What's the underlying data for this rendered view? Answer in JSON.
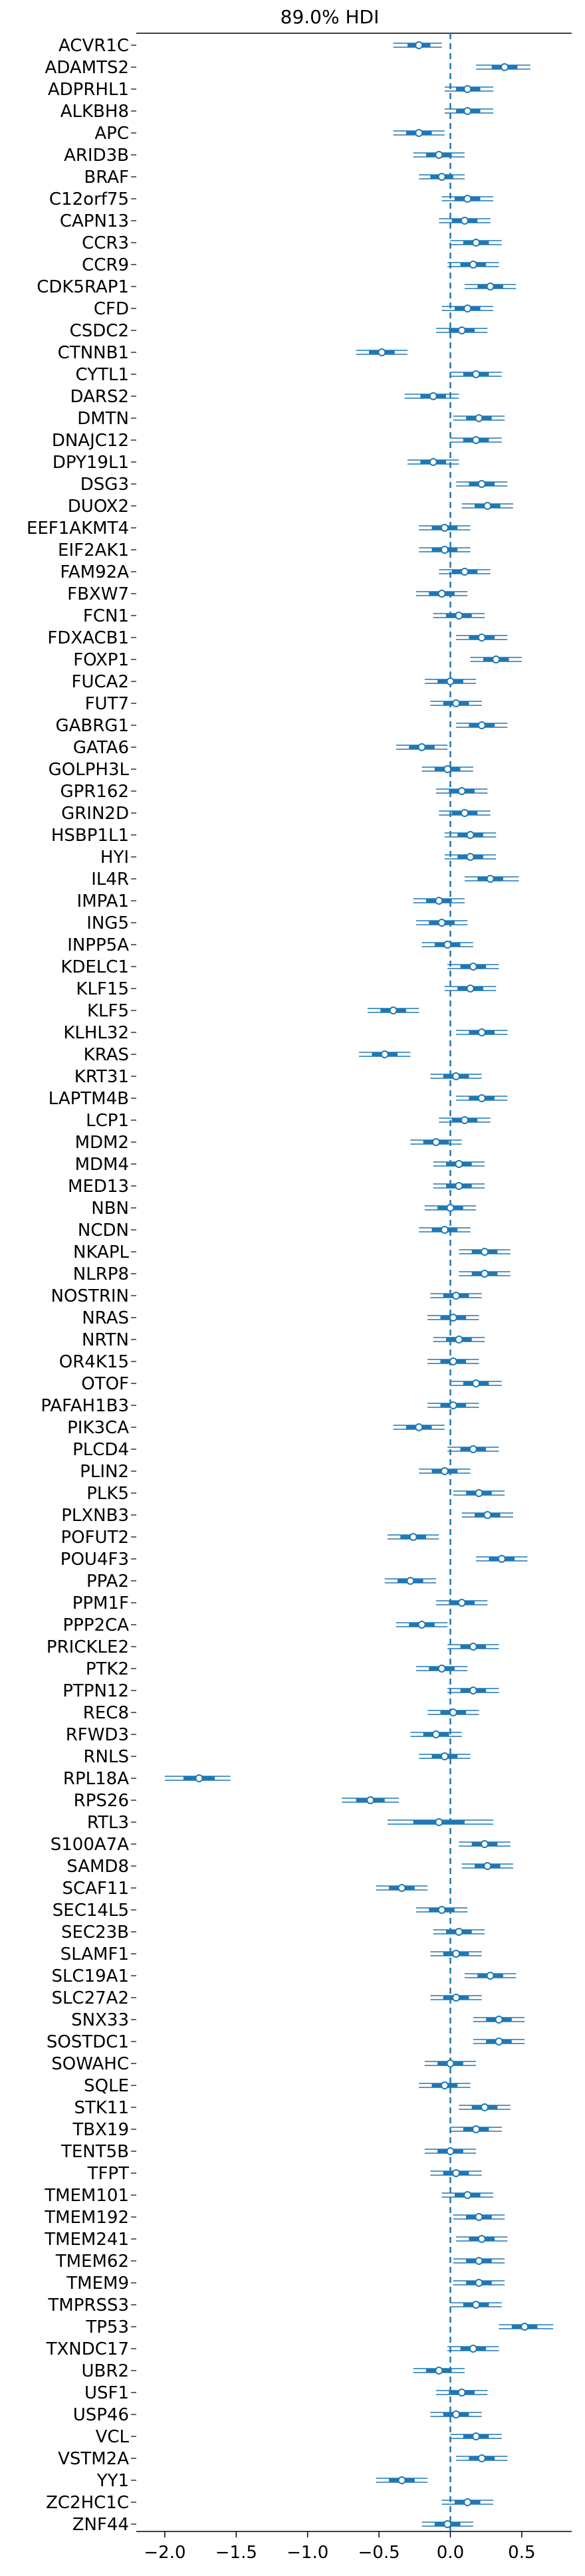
{
  "chart_data": {
    "type": "forest",
    "title": "89.0% HDI",
    "xlabel": "",
    "ylabel": "",
    "xlim": [
      -2.2,
      0.85
    ],
    "xticks": [
      -2.0,
      -1.5,
      -1.0,
      -0.5,
      0.0,
      0.5
    ],
    "xtick_labels": [
      "−2.0",
      "−1.5",
      "−1.0",
      "−0.5",
      "0.0",
      "0.5"
    ],
    "reference_line": 0.0,
    "grid": false,
    "colors": {
      "mark": "#1f77b4",
      "point_fill": "#ffffff",
      "reference": "#1f77b4"
    },
    "rows": [
      {
        "label": "ACVR1C",
        "mean": -0.22,
        "hdi_low": -0.4,
        "hdi_high": -0.06,
        "iqr_low": -0.3,
        "iqr_high": -0.14
      },
      {
        "label": "ADAMTS2",
        "mean": 0.38,
        "hdi_low": 0.18,
        "hdi_high": 0.56,
        "iqr_low": 0.29,
        "iqr_high": 0.47
      },
      {
        "label": "ADPRHL1",
        "mean": 0.12,
        "hdi_low": -0.04,
        "hdi_high": 0.3,
        "iqr_low": 0.04,
        "iqr_high": 0.21
      },
      {
        "label": "ALKBH8",
        "mean": 0.12,
        "hdi_low": -0.04,
        "hdi_high": 0.3,
        "iqr_low": 0.04,
        "iqr_high": 0.21
      },
      {
        "label": "APC",
        "mean": -0.22,
        "hdi_low": -0.4,
        "hdi_high": -0.04,
        "iqr_low": -0.31,
        "iqr_high": -0.13
      },
      {
        "label": "ARID3B",
        "mean": -0.08,
        "hdi_low": -0.26,
        "hdi_high": 0.1,
        "iqr_low": -0.17,
        "iqr_high": 0.01
      },
      {
        "label": "BRAF",
        "mean": -0.06,
        "hdi_low": -0.22,
        "hdi_high": 0.1,
        "iqr_low": -0.14,
        "iqr_high": 0.02
      },
      {
        "label": "C12orf75",
        "mean": 0.12,
        "hdi_low": -0.06,
        "hdi_high": 0.3,
        "iqr_low": 0.03,
        "iqr_high": 0.21
      },
      {
        "label": "CAPN13",
        "mean": 0.1,
        "hdi_low": -0.08,
        "hdi_high": 0.28,
        "iqr_low": 0.01,
        "iqr_high": 0.19
      },
      {
        "label": "CCR3",
        "mean": 0.18,
        "hdi_low": 0.0,
        "hdi_high": 0.36,
        "iqr_low": 0.09,
        "iqr_high": 0.27
      },
      {
        "label": "CCR9",
        "mean": 0.16,
        "hdi_low": -0.02,
        "hdi_high": 0.34,
        "iqr_low": 0.07,
        "iqr_high": 0.25
      },
      {
        "label": "CDK5RAP1",
        "mean": 0.28,
        "hdi_low": 0.1,
        "hdi_high": 0.46,
        "iqr_low": 0.19,
        "iqr_high": 0.37
      },
      {
        "label": "CFD",
        "mean": 0.12,
        "hdi_low": -0.06,
        "hdi_high": 0.3,
        "iqr_low": 0.03,
        "iqr_high": 0.21
      },
      {
        "label": "CSDC2",
        "mean": 0.08,
        "hdi_low": -0.1,
        "hdi_high": 0.26,
        "iqr_low": -0.01,
        "iqr_high": 0.17
      },
      {
        "label": "CTNNB1",
        "mean": -0.48,
        "hdi_low": -0.66,
        "hdi_high": -0.3,
        "iqr_low": -0.57,
        "iqr_high": -0.39
      },
      {
        "label": "CYTL1",
        "mean": 0.18,
        "hdi_low": 0.0,
        "hdi_high": 0.36,
        "iqr_low": 0.09,
        "iqr_high": 0.27
      },
      {
        "label": "DARS2",
        "mean": -0.12,
        "hdi_low": -0.32,
        "hdi_high": 0.06,
        "iqr_low": -0.21,
        "iqr_high": -0.03
      },
      {
        "label": "DMTN",
        "mean": 0.2,
        "hdi_low": 0.02,
        "hdi_high": 0.38,
        "iqr_low": 0.11,
        "iqr_high": 0.29
      },
      {
        "label": "DNAJC12",
        "mean": 0.18,
        "hdi_low": 0.0,
        "hdi_high": 0.36,
        "iqr_low": 0.09,
        "iqr_high": 0.27
      },
      {
        "label": "DPY19L1",
        "mean": -0.12,
        "hdi_low": -0.3,
        "hdi_high": 0.06,
        "iqr_low": -0.21,
        "iqr_high": -0.03
      },
      {
        "label": "DSG3",
        "mean": 0.22,
        "hdi_low": 0.04,
        "hdi_high": 0.4,
        "iqr_low": 0.13,
        "iqr_high": 0.31
      },
      {
        "label": "DUOX2",
        "mean": 0.26,
        "hdi_low": 0.08,
        "hdi_high": 0.44,
        "iqr_low": 0.17,
        "iqr_high": 0.35
      },
      {
        "label": "EEF1AKMT4",
        "mean": -0.04,
        "hdi_low": -0.22,
        "hdi_high": 0.14,
        "iqr_low": -0.13,
        "iqr_high": 0.05
      },
      {
        "label": "EIF2AK1",
        "mean": -0.04,
        "hdi_low": -0.22,
        "hdi_high": 0.14,
        "iqr_low": -0.13,
        "iqr_high": 0.05
      },
      {
        "label": "FAM92A",
        "mean": 0.1,
        "hdi_low": -0.08,
        "hdi_high": 0.28,
        "iqr_low": 0.01,
        "iqr_high": 0.19
      },
      {
        "label": "FBXW7",
        "mean": -0.06,
        "hdi_low": -0.24,
        "hdi_high": 0.12,
        "iqr_low": -0.15,
        "iqr_high": 0.03
      },
      {
        "label": "FCN1",
        "mean": 0.06,
        "hdi_low": -0.12,
        "hdi_high": 0.24,
        "iqr_low": -0.03,
        "iqr_high": 0.15
      },
      {
        "label": "FDXACB1",
        "mean": 0.22,
        "hdi_low": 0.04,
        "hdi_high": 0.4,
        "iqr_low": 0.13,
        "iqr_high": 0.31
      },
      {
        "label": "FOXP1",
        "mean": 0.32,
        "hdi_low": 0.14,
        "hdi_high": 0.5,
        "iqr_low": 0.23,
        "iqr_high": 0.41
      },
      {
        "label": "FUCA2",
        "mean": 0.0,
        "hdi_low": -0.18,
        "hdi_high": 0.18,
        "iqr_low": -0.09,
        "iqr_high": 0.09
      },
      {
        "label": "FUT7",
        "mean": 0.04,
        "hdi_low": -0.14,
        "hdi_high": 0.22,
        "iqr_low": -0.05,
        "iqr_high": 0.13
      },
      {
        "label": "GABRG1",
        "mean": 0.22,
        "hdi_low": 0.04,
        "hdi_high": 0.4,
        "iqr_low": 0.13,
        "iqr_high": 0.31
      },
      {
        "label": "GATA6",
        "mean": -0.2,
        "hdi_low": -0.38,
        "hdi_high": -0.02,
        "iqr_low": -0.29,
        "iqr_high": -0.11
      },
      {
        "label": "GOLPH3L",
        "mean": -0.02,
        "hdi_low": -0.2,
        "hdi_high": 0.16,
        "iqr_low": -0.11,
        "iqr_high": 0.07
      },
      {
        "label": "GPR162",
        "mean": 0.08,
        "hdi_low": -0.1,
        "hdi_high": 0.26,
        "iqr_low": -0.01,
        "iqr_high": 0.17
      },
      {
        "label": "GRIN2D",
        "mean": 0.1,
        "hdi_low": -0.08,
        "hdi_high": 0.28,
        "iqr_low": 0.01,
        "iqr_high": 0.19
      },
      {
        "label": "HSBP1L1",
        "mean": 0.14,
        "hdi_low": -0.04,
        "hdi_high": 0.32,
        "iqr_low": 0.05,
        "iqr_high": 0.23
      },
      {
        "label": "HYI",
        "mean": 0.14,
        "hdi_low": -0.04,
        "hdi_high": 0.32,
        "iqr_low": 0.05,
        "iqr_high": 0.23
      },
      {
        "label": "IL4R",
        "mean": 0.28,
        "hdi_low": 0.1,
        "hdi_high": 0.48,
        "iqr_low": 0.19,
        "iqr_high": 0.37
      },
      {
        "label": "IMPA1",
        "mean": -0.08,
        "hdi_low": -0.26,
        "hdi_high": 0.1,
        "iqr_low": -0.17,
        "iqr_high": 0.01
      },
      {
        "label": "ING5",
        "mean": -0.06,
        "hdi_low": -0.24,
        "hdi_high": 0.12,
        "iqr_low": -0.15,
        "iqr_high": 0.03
      },
      {
        "label": "INPP5A",
        "mean": -0.02,
        "hdi_low": -0.2,
        "hdi_high": 0.16,
        "iqr_low": -0.11,
        "iqr_high": 0.07
      },
      {
        "label": "KDELC1",
        "mean": 0.16,
        "hdi_low": -0.02,
        "hdi_high": 0.34,
        "iqr_low": 0.07,
        "iqr_high": 0.25
      },
      {
        "label": "KLF15",
        "mean": 0.14,
        "hdi_low": -0.04,
        "hdi_high": 0.32,
        "iqr_low": 0.05,
        "iqr_high": 0.23
      },
      {
        "label": "KLF5",
        "mean": -0.4,
        "hdi_low": -0.58,
        "hdi_high": -0.22,
        "iqr_low": -0.49,
        "iqr_high": -0.31
      },
      {
        "label": "KLHL32",
        "mean": 0.22,
        "hdi_low": 0.04,
        "hdi_high": 0.4,
        "iqr_low": 0.13,
        "iqr_high": 0.31
      },
      {
        "label": "KRAS",
        "mean": -0.46,
        "hdi_low": -0.64,
        "hdi_high": -0.28,
        "iqr_low": -0.55,
        "iqr_high": -0.37
      },
      {
        "label": "KRT31",
        "mean": 0.04,
        "hdi_low": -0.14,
        "hdi_high": 0.22,
        "iqr_low": -0.05,
        "iqr_high": 0.13
      },
      {
        "label": "LAPTM4B",
        "mean": 0.22,
        "hdi_low": 0.04,
        "hdi_high": 0.4,
        "iqr_low": 0.13,
        "iqr_high": 0.31
      },
      {
        "label": "LCP1",
        "mean": 0.1,
        "hdi_low": -0.08,
        "hdi_high": 0.28,
        "iqr_low": 0.01,
        "iqr_high": 0.19
      },
      {
        "label": "MDM2",
        "mean": -0.1,
        "hdi_low": -0.28,
        "hdi_high": 0.08,
        "iqr_low": -0.19,
        "iqr_high": -0.01
      },
      {
        "label": "MDM4",
        "mean": 0.06,
        "hdi_low": -0.12,
        "hdi_high": 0.24,
        "iqr_low": -0.03,
        "iqr_high": 0.15
      },
      {
        "label": "MED13",
        "mean": 0.06,
        "hdi_low": -0.12,
        "hdi_high": 0.24,
        "iqr_low": -0.03,
        "iqr_high": 0.15
      },
      {
        "label": "NBN",
        "mean": 0.0,
        "hdi_low": -0.18,
        "hdi_high": 0.18,
        "iqr_low": -0.09,
        "iqr_high": 0.09
      },
      {
        "label": "NCDN",
        "mean": -0.04,
        "hdi_low": -0.22,
        "hdi_high": 0.14,
        "iqr_low": -0.13,
        "iqr_high": 0.05
      },
      {
        "label": "NKAPL",
        "mean": 0.24,
        "hdi_low": 0.06,
        "hdi_high": 0.42,
        "iqr_low": 0.15,
        "iqr_high": 0.33
      },
      {
        "label": "NLRP8",
        "mean": 0.24,
        "hdi_low": 0.06,
        "hdi_high": 0.42,
        "iqr_low": 0.15,
        "iqr_high": 0.33
      },
      {
        "label": "NOSTRIN",
        "mean": 0.04,
        "hdi_low": -0.14,
        "hdi_high": 0.22,
        "iqr_low": -0.05,
        "iqr_high": 0.13
      },
      {
        "label": "NRAS",
        "mean": 0.02,
        "hdi_low": -0.16,
        "hdi_high": 0.2,
        "iqr_low": -0.07,
        "iqr_high": 0.11
      },
      {
        "label": "NRTN",
        "mean": 0.06,
        "hdi_low": -0.12,
        "hdi_high": 0.24,
        "iqr_low": -0.03,
        "iqr_high": 0.15
      },
      {
        "label": "OR4K15",
        "mean": 0.02,
        "hdi_low": -0.16,
        "hdi_high": 0.2,
        "iqr_low": -0.07,
        "iqr_high": 0.11
      },
      {
        "label": "OTOF",
        "mean": 0.18,
        "hdi_low": 0.0,
        "hdi_high": 0.36,
        "iqr_low": 0.09,
        "iqr_high": 0.27
      },
      {
        "label": "PAFAH1B3",
        "mean": 0.02,
        "hdi_low": -0.16,
        "hdi_high": 0.2,
        "iqr_low": -0.07,
        "iqr_high": 0.11
      },
      {
        "label": "PIK3CA",
        "mean": -0.22,
        "hdi_low": -0.4,
        "hdi_high": -0.04,
        "iqr_low": -0.31,
        "iqr_high": -0.13
      },
      {
        "label": "PLCD4",
        "mean": 0.16,
        "hdi_low": -0.02,
        "hdi_high": 0.34,
        "iqr_low": 0.07,
        "iqr_high": 0.25
      },
      {
        "label": "PLIN2",
        "mean": -0.04,
        "hdi_low": -0.22,
        "hdi_high": 0.14,
        "iqr_low": -0.13,
        "iqr_high": 0.05
      },
      {
        "label": "PLK5",
        "mean": 0.2,
        "hdi_low": 0.02,
        "hdi_high": 0.38,
        "iqr_low": 0.11,
        "iqr_high": 0.29
      },
      {
        "label": "PLXNB3",
        "mean": 0.26,
        "hdi_low": 0.08,
        "hdi_high": 0.44,
        "iqr_low": 0.17,
        "iqr_high": 0.35
      },
      {
        "label": "POFUT2",
        "mean": -0.26,
        "hdi_low": -0.44,
        "hdi_high": -0.08,
        "iqr_low": -0.35,
        "iqr_high": -0.17
      },
      {
        "label": "POU4F3",
        "mean": 0.36,
        "hdi_low": 0.18,
        "hdi_high": 0.54,
        "iqr_low": 0.27,
        "iqr_high": 0.45
      },
      {
        "label": "PPA2",
        "mean": -0.28,
        "hdi_low": -0.46,
        "hdi_high": -0.1,
        "iqr_low": -0.37,
        "iqr_high": -0.19
      },
      {
        "label": "PPM1F",
        "mean": 0.08,
        "hdi_low": -0.1,
        "hdi_high": 0.26,
        "iqr_low": -0.01,
        "iqr_high": 0.17
      },
      {
        "label": "PPP2CA",
        "mean": -0.2,
        "hdi_low": -0.38,
        "hdi_high": -0.02,
        "iqr_low": -0.29,
        "iqr_high": -0.11
      },
      {
        "label": "PRICKLE2",
        "mean": 0.16,
        "hdi_low": -0.02,
        "hdi_high": 0.34,
        "iqr_low": 0.07,
        "iqr_high": 0.25
      },
      {
        "label": "PTK2",
        "mean": -0.06,
        "hdi_low": -0.24,
        "hdi_high": 0.12,
        "iqr_low": -0.15,
        "iqr_high": 0.03
      },
      {
        "label": "PTPN12",
        "mean": 0.16,
        "hdi_low": -0.02,
        "hdi_high": 0.34,
        "iqr_low": 0.07,
        "iqr_high": 0.25
      },
      {
        "label": "REC8",
        "mean": 0.02,
        "hdi_low": -0.16,
        "hdi_high": 0.2,
        "iqr_low": -0.07,
        "iqr_high": 0.11
      },
      {
        "label": "RFWD3",
        "mean": -0.1,
        "hdi_low": -0.28,
        "hdi_high": 0.08,
        "iqr_low": -0.19,
        "iqr_high": -0.01
      },
      {
        "label": "RNLS",
        "mean": -0.04,
        "hdi_low": -0.22,
        "hdi_high": 0.14,
        "iqr_low": -0.13,
        "iqr_high": 0.05
      },
      {
        "label": "RPL18A",
        "mean": -1.76,
        "hdi_low": -2.0,
        "hdi_high": -1.54,
        "iqr_low": -1.87,
        "iqr_high": -1.65
      },
      {
        "label": "RPS26",
        "mean": -0.56,
        "hdi_low": -0.76,
        "hdi_high": -0.36,
        "iqr_low": -0.66,
        "iqr_high": -0.46
      },
      {
        "label": "RTL3",
        "mean": -0.08,
        "hdi_low": -0.44,
        "hdi_high": 0.3,
        "iqr_low": -0.26,
        "iqr_high": 0.1
      },
      {
        "label": "S100A7A",
        "mean": 0.24,
        "hdi_low": 0.06,
        "hdi_high": 0.42,
        "iqr_low": 0.15,
        "iqr_high": 0.33
      },
      {
        "label": "SAMD8",
        "mean": 0.26,
        "hdi_low": 0.08,
        "hdi_high": 0.44,
        "iqr_low": 0.17,
        "iqr_high": 0.35
      },
      {
        "label": "SCAF11",
        "mean": -0.34,
        "hdi_low": -0.52,
        "hdi_high": -0.16,
        "iqr_low": -0.43,
        "iqr_high": -0.25
      },
      {
        "label": "SEC14L5",
        "mean": -0.06,
        "hdi_low": -0.24,
        "hdi_high": 0.12,
        "iqr_low": -0.15,
        "iqr_high": 0.03
      },
      {
        "label": "SEC23B",
        "mean": 0.06,
        "hdi_low": -0.12,
        "hdi_high": 0.24,
        "iqr_low": -0.03,
        "iqr_high": 0.15
      },
      {
        "label": "SLAMF1",
        "mean": 0.04,
        "hdi_low": -0.14,
        "hdi_high": 0.22,
        "iqr_low": -0.05,
        "iqr_high": 0.13
      },
      {
        "label": "SLC19A1",
        "mean": 0.28,
        "hdi_low": 0.1,
        "hdi_high": 0.46,
        "iqr_low": 0.19,
        "iqr_high": 0.37
      },
      {
        "label": "SLC27A2",
        "mean": 0.04,
        "hdi_low": -0.14,
        "hdi_high": 0.22,
        "iqr_low": -0.05,
        "iqr_high": 0.13
      },
      {
        "label": "SNX33",
        "mean": 0.34,
        "hdi_low": 0.16,
        "hdi_high": 0.52,
        "iqr_low": 0.25,
        "iqr_high": 0.43
      },
      {
        "label": "SOSTDC1",
        "mean": 0.34,
        "hdi_low": 0.16,
        "hdi_high": 0.52,
        "iqr_low": 0.25,
        "iqr_high": 0.43
      },
      {
        "label": "SOWAHC",
        "mean": 0.0,
        "hdi_low": -0.18,
        "hdi_high": 0.18,
        "iqr_low": -0.09,
        "iqr_high": 0.09
      },
      {
        "label": "SQLE",
        "mean": -0.04,
        "hdi_low": -0.22,
        "hdi_high": 0.14,
        "iqr_low": -0.13,
        "iqr_high": 0.05
      },
      {
        "label": "STK11",
        "mean": 0.24,
        "hdi_low": 0.06,
        "hdi_high": 0.42,
        "iqr_low": 0.15,
        "iqr_high": 0.33
      },
      {
        "label": "TBX19",
        "mean": 0.18,
        "hdi_low": 0.0,
        "hdi_high": 0.36,
        "iqr_low": 0.09,
        "iqr_high": 0.27
      },
      {
        "label": "TENT5B",
        "mean": 0.0,
        "hdi_low": -0.18,
        "hdi_high": 0.18,
        "iqr_low": -0.09,
        "iqr_high": 0.09
      },
      {
        "label": "TFPT",
        "mean": 0.04,
        "hdi_low": -0.14,
        "hdi_high": 0.22,
        "iqr_low": -0.05,
        "iqr_high": 0.13
      },
      {
        "label": "TMEM101",
        "mean": 0.12,
        "hdi_low": -0.06,
        "hdi_high": 0.3,
        "iqr_low": 0.03,
        "iqr_high": 0.21
      },
      {
        "label": "TMEM192",
        "mean": 0.2,
        "hdi_low": 0.02,
        "hdi_high": 0.38,
        "iqr_low": 0.11,
        "iqr_high": 0.29
      },
      {
        "label": "TMEM241",
        "mean": 0.22,
        "hdi_low": 0.04,
        "hdi_high": 0.4,
        "iqr_low": 0.13,
        "iqr_high": 0.31
      },
      {
        "label": "TMEM62",
        "mean": 0.2,
        "hdi_low": 0.02,
        "hdi_high": 0.38,
        "iqr_low": 0.11,
        "iqr_high": 0.29
      },
      {
        "label": "TMEM9",
        "mean": 0.2,
        "hdi_low": 0.02,
        "hdi_high": 0.38,
        "iqr_low": 0.11,
        "iqr_high": 0.29
      },
      {
        "label": "TMPRSS3",
        "mean": 0.18,
        "hdi_low": 0.0,
        "hdi_high": 0.36,
        "iqr_low": 0.09,
        "iqr_high": 0.27
      },
      {
        "label": "TP53",
        "mean": 0.52,
        "hdi_low": 0.34,
        "hdi_high": 0.72,
        "iqr_low": 0.43,
        "iqr_high": 0.61
      },
      {
        "label": "TXNDC17",
        "mean": 0.16,
        "hdi_low": -0.02,
        "hdi_high": 0.34,
        "iqr_low": 0.07,
        "iqr_high": 0.25
      },
      {
        "label": "UBR2",
        "mean": -0.08,
        "hdi_low": -0.26,
        "hdi_high": 0.1,
        "iqr_low": -0.17,
        "iqr_high": 0.01
      },
      {
        "label": "USF1",
        "mean": 0.08,
        "hdi_low": -0.1,
        "hdi_high": 0.26,
        "iqr_low": -0.01,
        "iqr_high": 0.17
      },
      {
        "label": "USP46",
        "mean": 0.04,
        "hdi_low": -0.14,
        "hdi_high": 0.22,
        "iqr_low": -0.05,
        "iqr_high": 0.13
      },
      {
        "label": "VCL",
        "mean": 0.18,
        "hdi_low": 0.0,
        "hdi_high": 0.36,
        "iqr_low": 0.09,
        "iqr_high": 0.27
      },
      {
        "label": "VSTM2A",
        "mean": 0.22,
        "hdi_low": 0.04,
        "hdi_high": 0.4,
        "iqr_low": 0.13,
        "iqr_high": 0.31
      },
      {
        "label": "YY1",
        "mean": -0.34,
        "hdi_low": -0.52,
        "hdi_high": -0.16,
        "iqr_low": -0.43,
        "iqr_high": -0.25
      },
      {
        "label": "ZC2HC1C",
        "mean": 0.12,
        "hdi_low": -0.06,
        "hdi_high": 0.3,
        "iqr_low": 0.03,
        "iqr_high": 0.21
      },
      {
        "label": "ZNF44",
        "mean": -0.02,
        "hdi_low": -0.2,
        "hdi_high": 0.16,
        "iqr_low": -0.11,
        "iqr_high": 0.07
      }
    ]
  }
}
